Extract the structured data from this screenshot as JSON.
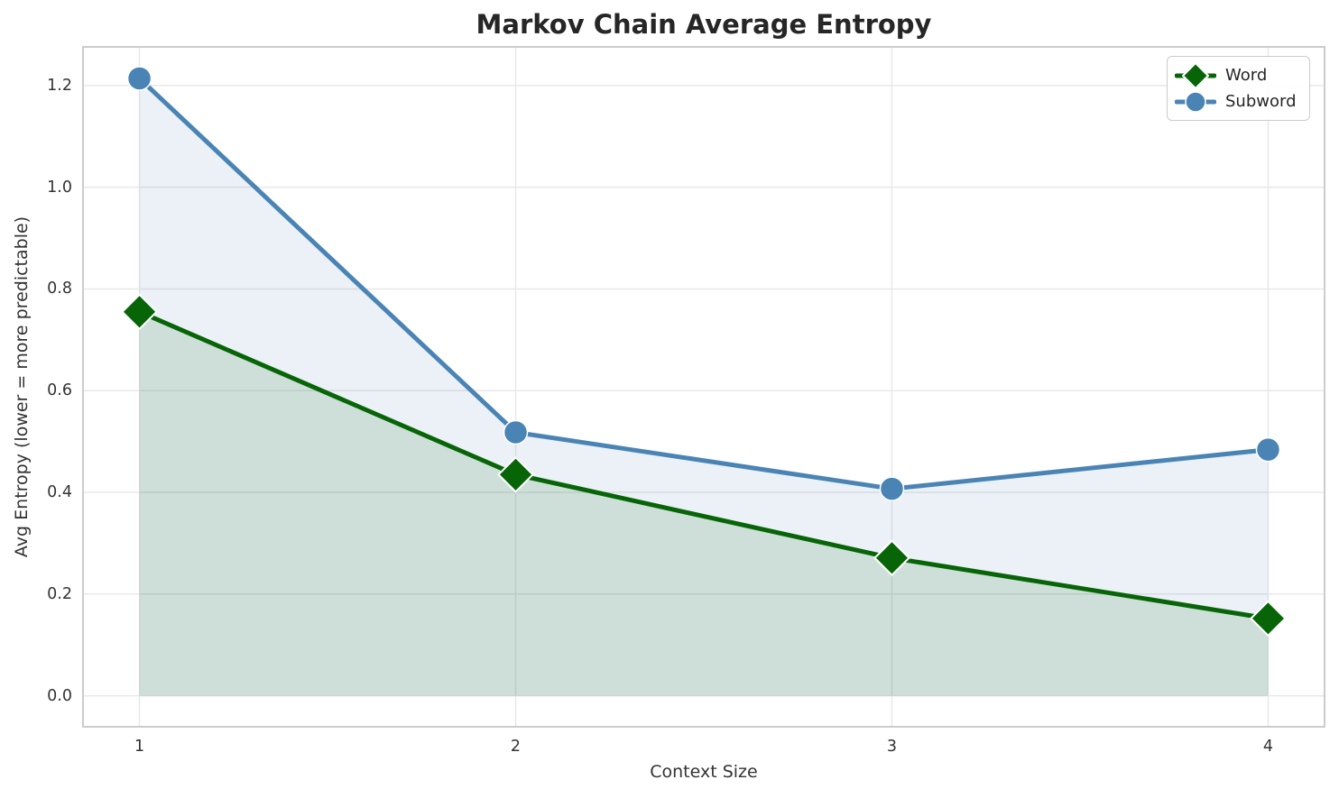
{
  "title": "Markov Chain Average Entropy",
  "chart_data": {
    "type": "line",
    "title": "Markov Chain Average Entropy",
    "xlabel": "Context Size",
    "ylabel": "Avg Entropy (lower = more predictable)",
    "x": [
      1,
      2,
      3,
      4
    ],
    "series": [
      {
        "name": "Word",
        "marker": "diamond",
        "color": "#076507",
        "fill_opacity": 0.13,
        "values": [
          0.755,
          0.435,
          0.271,
          0.152
        ]
      },
      {
        "name": "Subword",
        "marker": "circle",
        "color": "#4a84b5",
        "fill_opacity": 0.11,
        "values": [
          1.214,
          0.518,
          0.407,
          0.484
        ]
      }
    ],
    "x_ticks": [
      1,
      2,
      3,
      4
    ],
    "x_tick_labels": [
      "1",
      "2",
      "3",
      "4"
    ],
    "y_ticks": [
      0.0,
      0.2,
      0.4,
      0.6,
      0.8,
      1.0,
      1.2
    ],
    "y_tick_labels": [
      "0.0",
      "0.2",
      "0.4",
      "0.6",
      "0.8",
      "1.0",
      "1.2"
    ],
    "xlim": [
      0.85,
      4.15
    ],
    "ylim": [
      -0.061,
      1.276
    ],
    "grid": true,
    "area_fill_baseline": 0,
    "legend_position": "top-right",
    "colors": {
      "grid": "#e8e8e8",
      "spine": "#cccccc",
      "title_text": "#262626",
      "tick_text": "#333333",
      "marker_edge": "#ffffff"
    }
  }
}
